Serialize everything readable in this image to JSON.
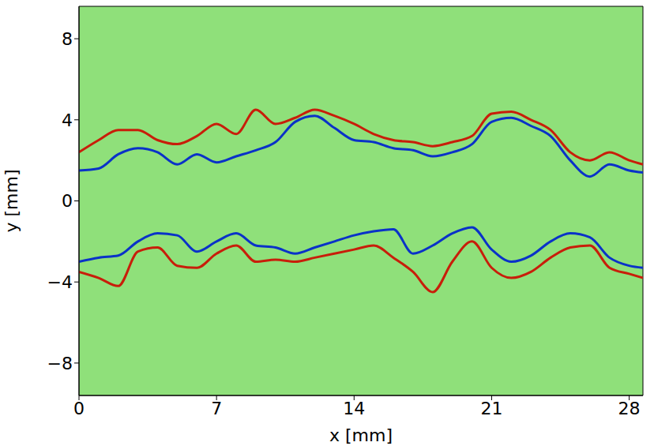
{
  "chart_data": {
    "type": "line",
    "x_label": "x [mm]",
    "y_label": "y [mm]",
    "xlim": [
      0,
      28.7
    ],
    "ylim": [
      -9.6,
      9.6
    ],
    "xticks": [
      0,
      7,
      14,
      21,
      28
    ],
    "yticks": [
      {
        "value": -8,
        "label": "−8"
      },
      {
        "value": -4,
        "label": "−4"
      },
      0,
      4,
      8
    ],
    "grid": false,
    "x": [
      0,
      1,
      2,
      3,
      4,
      5,
      6,
      7,
      8,
      9,
      10,
      11,
      12,
      13,
      14,
      15,
      16,
      17,
      18,
      19,
      20,
      21,
      22,
      23,
      24,
      25,
      26,
      27,
      28,
      28.7
    ],
    "series": [
      {
        "color": "#c81e0a",
        "values": [
          2.4,
          3.0,
          3.5,
          3.5,
          3.0,
          2.8,
          3.2,
          3.8,
          3.3,
          4.5,
          3.8,
          4.1,
          4.5,
          4.2,
          3.8,
          3.3,
          3.0,
          2.9,
          2.7,
          2.9,
          3.2,
          4.3,
          4.4,
          4.0,
          3.5,
          2.4,
          2.0,
          2.4,
          2.0,
          1.8
        ]
      },
      {
        "color": "#0a32c8",
        "values": [
          1.5,
          1.6,
          2.3,
          2.6,
          2.4,
          1.8,
          2.3,
          1.9,
          2.2,
          2.5,
          2.9,
          3.9,
          4.2,
          3.6,
          3.0,
          2.9,
          2.6,
          2.5,
          2.2,
          2.4,
          2.8,
          3.9,
          4.1,
          3.7,
          3.2,
          2.0,
          1.2,
          1.8,
          1.5,
          1.4
        ]
      },
      {
        "color": "#0a32c8",
        "values": [
          -3.0,
          -2.8,
          -2.7,
          -2.0,
          -1.6,
          -1.7,
          -2.5,
          -2.0,
          -1.6,
          -2.2,
          -2.3,
          -2.6,
          -2.3,
          -2.0,
          -1.7,
          -1.5,
          -1.4,
          -2.6,
          -2.2,
          -1.6,
          -1.3,
          -2.4,
          -3.0,
          -2.7,
          -2.0,
          -1.6,
          -1.8,
          -2.8,
          -3.2,
          -3.3
        ]
      },
      {
        "color": "#c81e0a",
        "values": [
          -3.5,
          -3.8,
          -4.2,
          -2.5,
          -2.3,
          -3.2,
          -3.3,
          -2.6,
          -2.2,
          -3.0,
          -2.9,
          -3.0,
          -2.8,
          -2.6,
          -2.4,
          -2.2,
          -2.8,
          -3.5,
          -4.5,
          -3.0,
          -2.0,
          -3.3,
          -3.8,
          -3.5,
          -2.8,
          -2.3,
          -2.2,
          -3.3,
          -3.6,
          -3.8
        ]
      }
    ]
  }
}
